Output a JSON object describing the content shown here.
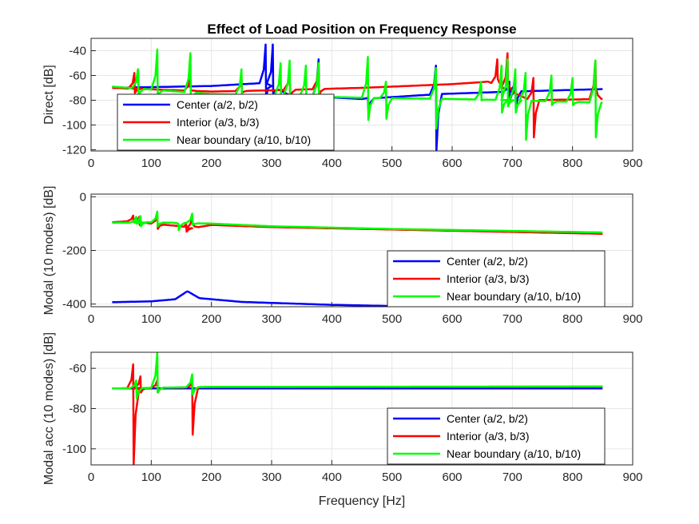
{
  "title": "Effect of Load Position on Frequency Response",
  "xlabel": "Frequency [Hz]",
  "colors": {
    "center": "#0000ff",
    "interior": "#ff0000",
    "near": "#00ff00",
    "grid": "#e6e6e6",
    "axis": "#262626"
  },
  "chart_data": [
    {
      "type": "line",
      "ylabel": "Direct [dB]",
      "xlim": [
        0,
        900
      ],
      "ylim": [
        -121,
        -30
      ],
      "xticks": [
        0,
        100,
        200,
        300,
        400,
        500,
        600,
        700,
        800,
        900
      ],
      "yticks": [
        -120,
        -100,
        -80,
        -60,
        -40
      ],
      "grid": true,
      "legend_position": "bottom-left",
      "series": [
        {
          "name": "Center (a/2, b/2)",
          "color": "#0000ff",
          "baseline": [
            [
              35,
              -70
            ],
            [
              200,
              -68.5
            ],
            [
              290,
              -66
            ],
            [
              330,
              -76
            ],
            [
              450,
              -79
            ],
            [
              580,
              -75
            ],
            [
              700,
              -73
            ],
            [
              850,
              -71
            ]
          ],
          "resonances": [
            {
              "f": 290,
              "peak": -35,
              "dip": -78
            },
            {
              "f": 302,
              "peak": -35,
              "dip": -78
            },
            {
              "f": 378,
              "peak": -47,
              "dip": -77
            },
            {
              "f": 460,
              "peak": -78,
              "dip": -88
            },
            {
              "f": 573,
              "peak": -52,
              "dip": -121
            },
            {
              "f": 695,
              "peak": -65,
              "dip": -80
            },
            {
              "f": 705,
              "peak": -62,
              "dip": -87
            }
          ]
        },
        {
          "name": "Interior (a/3, b/3)",
          "color": "#ff0000",
          "baseline": [
            [
              35,
              -70
            ],
            [
              200,
              -73
            ],
            [
              300,
              -72
            ],
            [
              450,
              -70
            ],
            [
              600,
              -67
            ],
            [
              660,
              -65
            ],
            [
              730,
              -80
            ],
            [
              850,
              -79
            ]
          ],
          "resonances": [
            {
              "f": 72,
              "peak": -58,
              "dip": -74
            },
            {
              "f": 78,
              "peak": -55,
              "dip": -70
            },
            {
              "f": 165,
              "peak": -60,
              "dip": -72
            },
            {
              "f": 250,
              "peak": -62,
              "dip": -74
            },
            {
              "f": 330,
              "peak": -57,
              "dip": -78
            },
            {
              "f": 378,
              "peak": -53,
              "dip": -76
            },
            {
              "f": 675,
              "peak": -47,
              "dip": -63
            },
            {
              "f": 692,
              "peak": -42,
              "dip": -66
            },
            {
              "f": 735,
              "peak": -62,
              "dip": -110
            },
            {
              "f": 838,
              "peak": -48,
              "dip": -70
            }
          ]
        },
        {
          "name": "Near boundary (a/10, b/10)",
          "color": "#00ff00",
          "baseline": [
            [
              35,
              -69
            ],
            [
              200,
              -75
            ],
            [
              300,
              -76
            ],
            [
              450,
              -78
            ],
            [
              600,
              -79
            ],
            [
              700,
              -80
            ],
            [
              850,
              -82
            ]
          ],
          "resonances": [
            {
              "f": 78,
              "peak": -55,
              "dip": -78
            },
            {
              "f": 110,
              "peak": -39,
              "dip": -78
            },
            {
              "f": 165,
              "peak": -42,
              "dip": -80
            },
            {
              "f": 250,
              "peak": -55,
              "dip": -80
            },
            {
              "f": 315,
              "peak": -50,
              "dip": -83
            },
            {
              "f": 330,
              "peak": -48,
              "dip": -82
            },
            {
              "f": 357,
              "peak": -52,
              "dip": -82
            },
            {
              "f": 378,
              "peak": -50,
              "dip": -82
            },
            {
              "f": 460,
              "peak": -45,
              "dip": -96
            },
            {
              "f": 490,
              "peak": -65,
              "dip": -95
            },
            {
              "f": 573,
              "peak": -54,
              "dip": -103
            },
            {
              "f": 648,
              "peak": -65,
              "dip": -80
            },
            {
              "f": 682,
              "peak": -52,
              "dip": -90
            },
            {
              "f": 692,
              "peak": -47,
              "dip": -85
            },
            {
              "f": 705,
              "peak": -55,
              "dip": -90
            },
            {
              "f": 722,
              "peak": -58,
              "dip": -112
            },
            {
              "f": 765,
              "peak": -60,
              "dip": -84
            },
            {
              "f": 800,
              "peak": -62,
              "dip": -84
            },
            {
              "f": 838,
              "peak": -48,
              "dip": -110
            }
          ]
        }
      ]
    },
    {
      "type": "line",
      "ylabel": "Modal (10 modes) [dB]",
      "xlim": [
        0,
        900
      ],
      "ylim": [
        -410,
        10
      ],
      "xticks": [
        0,
        100,
        200,
        300,
        400,
        500,
        600,
        700,
        800,
        900
      ],
      "yticks": [
        -400,
        -200,
        0
      ],
      "grid": true,
      "legend_position": "bottom-right",
      "series": [
        {
          "name": "Center (a/2, b/2)",
          "color": "#0000ff",
          "baseline": [
            [
              35,
              -393
            ],
            [
              100,
              -390
            ],
            [
              140,
              -382
            ],
            [
              160,
              -352
            ],
            [
              180,
              -378
            ],
            [
              250,
              -392
            ],
            [
              400,
              -403
            ],
            [
              600,
              -412
            ],
            [
              850,
              -418
            ]
          ],
          "resonances": []
        },
        {
          "name": "Interior (a/3, b/3)",
          "color": "#ff0000",
          "baseline": [
            [
              35,
              -95
            ],
            [
              70,
              -90
            ],
            [
              100,
              -100
            ],
            [
              150,
              -110
            ],
            [
              160,
              -120
            ],
            [
              200,
              -105
            ],
            [
              300,
              -113
            ],
            [
              500,
              -122
            ],
            [
              850,
              -138
            ]
          ],
          "resonances": [
            {
              "f": 70,
              "peak": -70,
              "dip": -95
            },
            {
              "f": 80,
              "peak": -75,
              "dip": -105
            },
            {
              "f": 110,
              "peak": -65,
              "dip": -120
            },
            {
              "f": 158,
              "peak": -100,
              "dip": -130
            },
            {
              "f": 168,
              "peak": -75,
              "dip": -100
            }
          ]
        },
        {
          "name": "Near boundary (a/10, b/10)",
          "color": "#00ff00",
          "baseline": [
            [
              35,
              -97
            ],
            [
              100,
              -95
            ],
            [
              200,
              -100
            ],
            [
              300,
              -110
            ],
            [
              500,
              -120
            ],
            [
              850,
              -133
            ]
          ],
          "resonances": [
            {
              "f": 75,
              "peak": -75,
              "dip": -100
            },
            {
              "f": 82,
              "peak": -72,
              "dip": -110
            },
            {
              "f": 110,
              "peak": -55,
              "dip": -110
            },
            {
              "f": 145,
              "peak": -100,
              "dip": -125
            },
            {
              "f": 168,
              "peak": -63,
              "dip": -105
            }
          ]
        }
      ]
    },
    {
      "type": "line",
      "ylabel": "Modal acc (10 modes) [dB]",
      "xlim": [
        0,
        900
      ],
      "ylim": [
        -108,
        -52
      ],
      "xticks": [
        0,
        100,
        200,
        300,
        400,
        500,
        600,
        700,
        800,
        900
      ],
      "yticks": [
        -100,
        -80,
        -60
      ],
      "grid": true,
      "legend_position": "bottom-right",
      "series": [
        {
          "name": "Center (a/2, b/2)",
          "color": "#0000ff",
          "baseline": [
            [
              35,
              -70
            ],
            [
              850,
              -70
            ]
          ],
          "resonances": []
        },
        {
          "name": "Interior (a/3, b/3)",
          "color": "#ff0000",
          "baseline": [
            [
              35,
              -70
            ],
            [
              200,
              -69.3
            ],
            [
              850,
              -69.1
            ]
          ],
          "resonances": [
            {
              "f": 70,
              "peak": -58,
              "dip": -108
            },
            {
              "f": 82,
              "peak": -64,
              "dip": -72
            },
            {
              "f": 110,
              "peak": -66,
              "dip": -72
            },
            {
              "f": 168,
              "peak": -67,
              "dip": -93
            }
          ]
        },
        {
          "name": "Near boundary (a/10, b/10)",
          "color": "#00ff00",
          "baseline": [
            [
              35,
              -70
            ],
            [
              200,
              -69.2
            ],
            [
              850,
              -69
            ]
          ],
          "resonances": [
            {
              "f": 75,
              "peak": -66,
              "dip": -75
            },
            {
              "f": 110,
              "peak": -52,
              "dip": -72
            },
            {
              "f": 168,
              "peak": -63,
              "dip": -73
            }
          ]
        }
      ]
    }
  ]
}
